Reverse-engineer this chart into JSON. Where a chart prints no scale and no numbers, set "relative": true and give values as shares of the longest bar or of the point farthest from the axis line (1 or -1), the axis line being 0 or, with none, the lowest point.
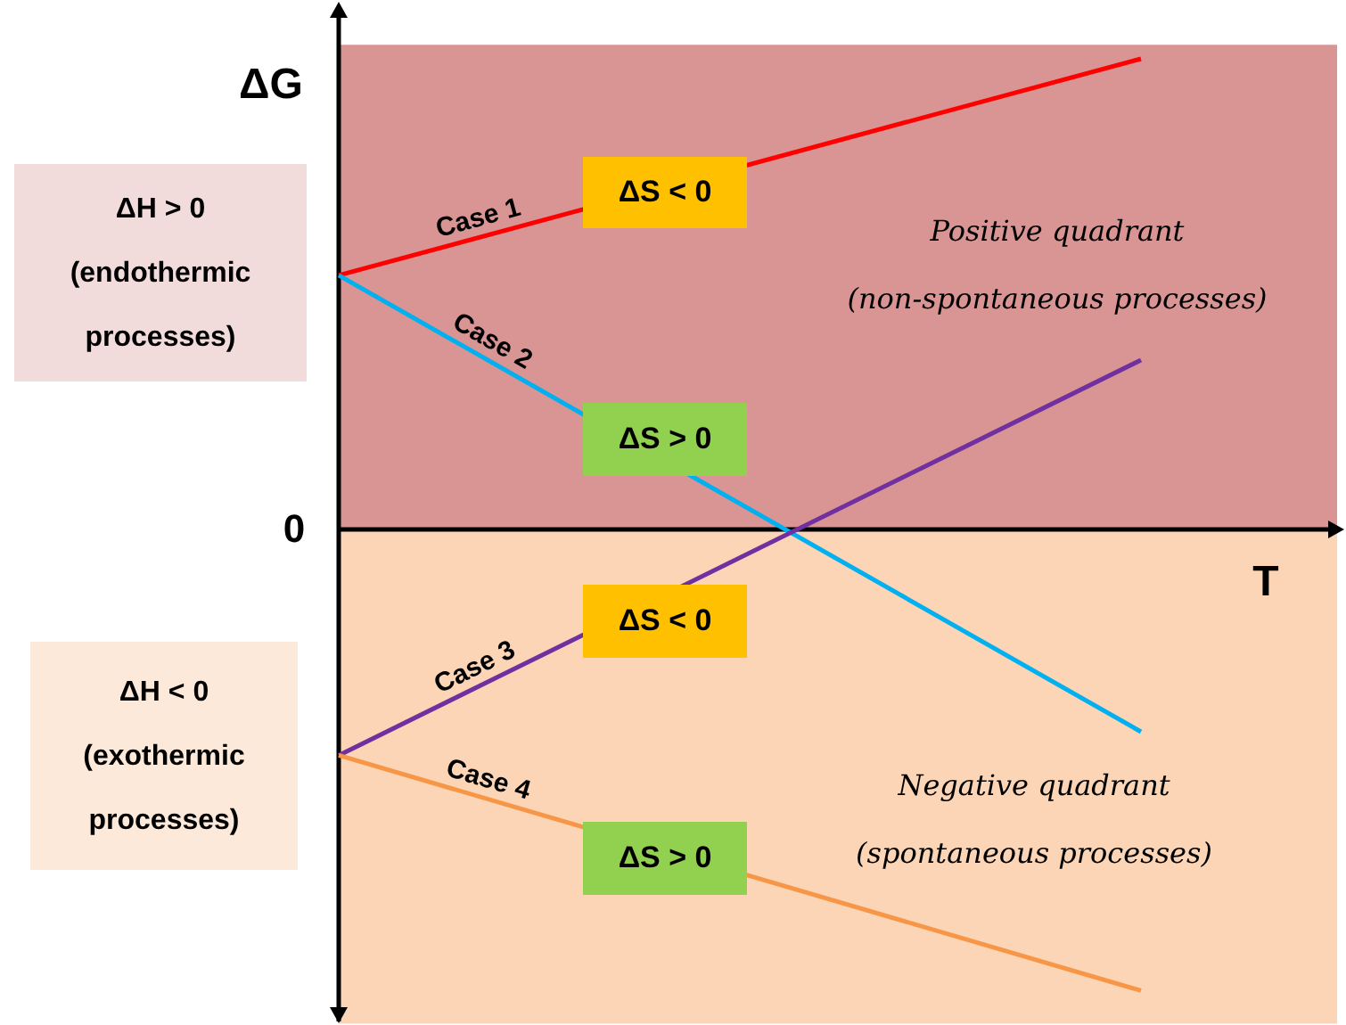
{
  "chart_data": {
    "type": "line",
    "relative": true,
    "categories": [
      null,
      null
    ],
    "xlabel": "T",
    "ylabel": "ΔG",
    "series": [
      {
        "name": "Case 1",
        "color": "#ff0000",
        "values": [
          0.54,
          1.0
        ]
      },
      {
        "name": "Case 2",
        "color": "#00b0f0",
        "values": [
          0.54,
          -0.43
        ]
      },
      {
        "name": "Case 3",
        "color": "#7030a0",
        "values": [
          -0.48,
          0.36
        ]
      },
      {
        "name": "Case 4",
        "color": "#f79646",
        "values": [
          -0.48,
          -0.98
        ]
      }
    ],
    "bands": [
      {
        "axis": "y",
        "from": 0,
        "to": 1.03,
        "label": "Positive quadrant\n(non-spontaneous processes)",
        "color": "#d99594"
      },
      {
        "axis": "y",
        "from": -1.05,
        "to": 0,
        "label": "Negative quadrant\n(spontaneous processes)",
        "color": "#fbd5b5"
      }
    ],
    "annotations": [
      "ΔH > 0\n(endothermic\nprocesses)",
      "ΔH < 0\n(exothermic\nprocesses)",
      "ΔS < 0",
      "ΔS > 0",
      "ΔS < 0",
      "ΔS > 0",
      "0"
    ]
  }
}
